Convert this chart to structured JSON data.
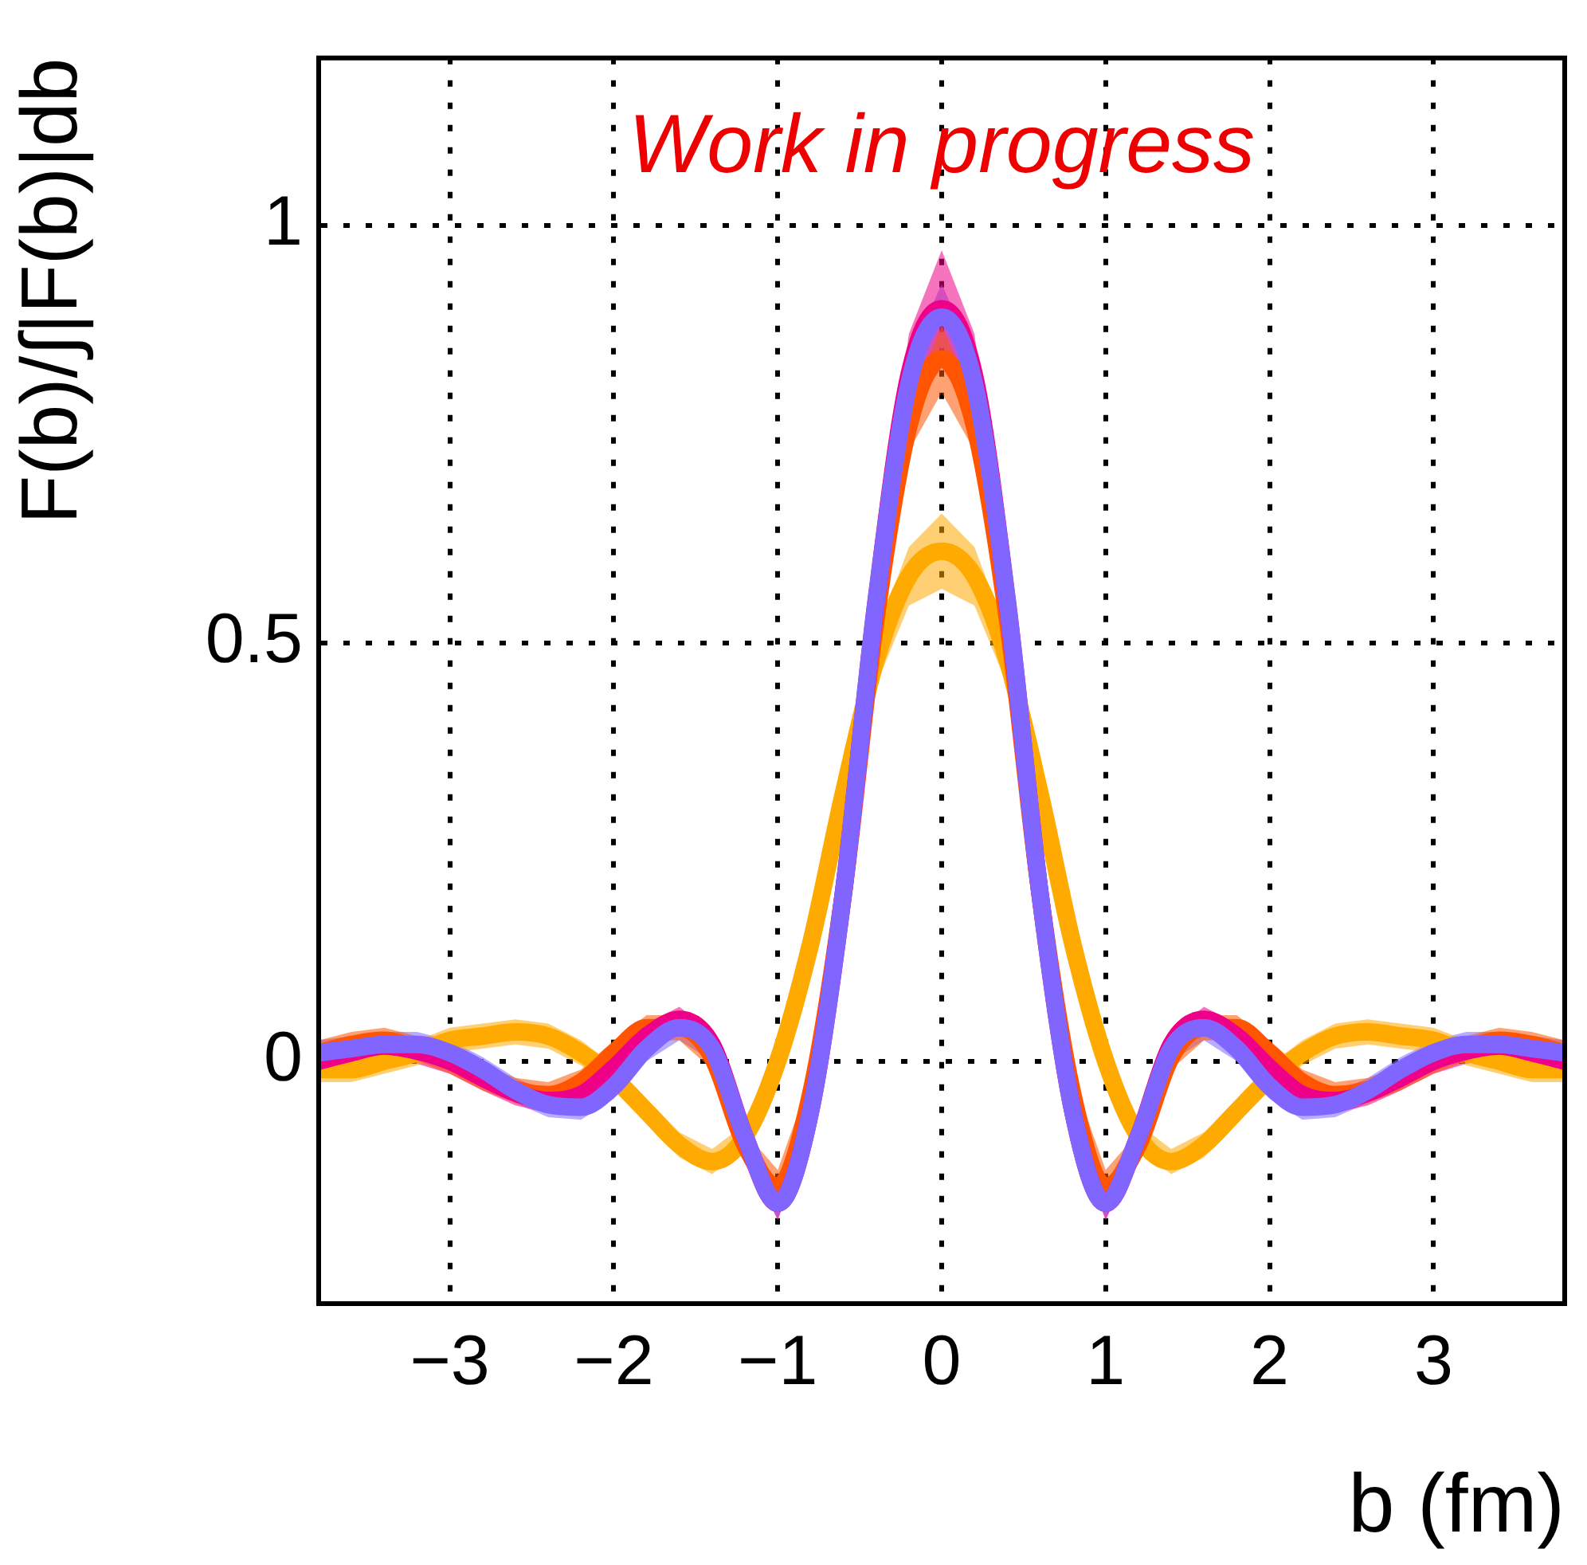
{
  "chart_data": {
    "type": "line",
    "xlabel": "b (fm)",
    "ylabel": "F(b)/∫|F(b)|db",
    "annotations": [
      "Work in progress"
    ],
    "x": [
      -3.8,
      -3.6,
      -3.4,
      -3.2,
      -3.0,
      -2.8,
      -2.6,
      -2.4,
      -2.2,
      -2.0,
      -1.8,
      -1.6,
      -1.4,
      -1.2,
      -1.0,
      -0.8,
      -0.6,
      -0.4,
      -0.2,
      0,
      0.2,
      0.4,
      0.6,
      0.8,
      1.0,
      1.2,
      1.4,
      1.6,
      1.8,
      2.0,
      2.2,
      2.4,
      2.6,
      2.8,
      3.0,
      3.2,
      3.4,
      3.6,
      3.8
    ],
    "xlim": [
      -3.8,
      3.8
    ],
    "xticks": [
      -3,
      -2,
      -1,
      0,
      1,
      2,
      3
    ],
    "ylim": [
      -0.29,
      1.2
    ],
    "yticks": [
      0,
      0.5,
      1
    ],
    "grid": true,
    "line_style": "solid",
    "marker": "none",
    "series": [
      {
        "color": "#8066ff",
        "values": [
          0.01,
          0.015,
          0.02,
          0.02,
          0.01,
          -0.01,
          -0.035,
          -0.052,
          -0.055,
          -0.03,
          0.015,
          0.04,
          0.015,
          -0.09,
          -0.17,
          -0.06,
          0.2,
          0.55,
          0.81,
          0.89,
          0.81,
          0.55,
          0.2,
          -0.06,
          -0.17,
          -0.09,
          0.015,
          0.04,
          0.015,
          -0.03,
          -0.055,
          -0.052,
          -0.035,
          -0.01,
          0.01,
          0.02,
          0.02,
          0.015,
          0.01
        ],
        "lower": [
          -0.005,
          0,
          0.005,
          0.005,
          -0.005,
          -0.025,
          -0.05,
          -0.067,
          -0.07,
          -0.045,
          0,
          0.025,
          0,
          -0.105,
          -0.19,
          -0.08,
          0.175,
          0.52,
          0.78,
          0.85,
          0.78,
          0.52,
          0.175,
          -0.08,
          -0.19,
          -0.105,
          0,
          0.025,
          0,
          -0.045,
          -0.07,
          -0.067,
          -0.05,
          -0.025,
          -0.005,
          0.005,
          0.005,
          0,
          -0.005
        ],
        "upper": [
          0.025,
          0.03,
          0.035,
          0.035,
          0.025,
          0.005,
          -0.02,
          -0.037,
          -0.04,
          -0.015,
          0.03,
          0.055,
          0.03,
          -0.075,
          -0.15,
          -0.04,
          0.225,
          0.58,
          0.84,
          0.93,
          0.84,
          0.58,
          0.225,
          -0.04,
          -0.15,
          -0.075,
          0.03,
          0.055,
          0.03,
          -0.015,
          -0.04,
          -0.037,
          -0.02,
          0.005,
          0.025,
          0.035,
          0.035,
          0.03,
          0.025
        ]
      },
      {
        "color": "#ee0088",
        "values": [
          0,
          0.01,
          0.018,
          0.012,
          0,
          -0.02,
          -0.038,
          -0.047,
          -0.04,
          -0.008,
          0.03,
          0.05,
          0.02,
          -0.09,
          -0.17,
          -0.06,
          0.2,
          0.55,
          0.82,
          0.9,
          0.82,
          0.55,
          0.2,
          -0.06,
          -0.17,
          -0.09,
          0.02,
          0.05,
          0.03,
          -0.008,
          -0.04,
          -0.047,
          -0.038,
          -0.02,
          0,
          0.012,
          0.018,
          0.01,
          0
        ],
        "lower": [
          -0.015,
          -0.005,
          0.003,
          -0.003,
          -0.015,
          -0.035,
          -0.053,
          -0.062,
          -0.055,
          -0.023,
          0.015,
          0.035,
          0.005,
          -0.105,
          -0.19,
          -0.08,
          0.175,
          0.52,
          0.77,
          0.83,
          0.77,
          0.52,
          0.175,
          -0.08,
          -0.19,
          -0.105,
          0.005,
          0.035,
          0.015,
          -0.023,
          -0.055,
          -0.062,
          -0.053,
          -0.035,
          -0.015,
          -0.003,
          0.003,
          -0.005,
          -0.015
        ],
        "upper": [
          0.015,
          0.025,
          0.033,
          0.027,
          0.015,
          -0.005,
          -0.023,
          -0.032,
          -0.025,
          0.007,
          0.045,
          0.065,
          0.035,
          -0.075,
          -0.15,
          -0.04,
          0.225,
          0.58,
          0.87,
          0.97,
          0.87,
          0.58,
          0.225,
          -0.04,
          -0.15,
          -0.075,
          0.035,
          0.065,
          0.045,
          0.007,
          -0.025,
          -0.032,
          -0.023,
          -0.005,
          0.015,
          0.027,
          0.033,
          0.025,
          0.015
        ]
      },
      {
        "color": "#ff5500",
        "values": [
          0.01,
          0.02,
          0.025,
          0.015,
          0,
          -0.02,
          -0.035,
          -0.04,
          -0.025,
          0.01,
          0.04,
          0.04,
          0.005,
          -0.1,
          -0.15,
          -0.04,
          0.2,
          0.53,
          0.76,
          0.84,
          0.76,
          0.53,
          0.2,
          -0.04,
          -0.15,
          -0.1,
          0.005,
          0.04,
          0.04,
          0.01,
          -0.025,
          -0.04,
          -0.035,
          -0.02,
          0,
          0.015,
          0.025,
          0.02,
          0.01
        ],
        "lower": [
          -0.005,
          0.005,
          0.01,
          0,
          -0.015,
          -0.035,
          -0.05,
          -0.055,
          -0.04,
          -0.005,
          0.025,
          0.025,
          -0.01,
          -0.115,
          -0.17,
          -0.06,
          0.175,
          0.5,
          0.73,
          0.8,
          0.73,
          0.5,
          0.175,
          -0.06,
          -0.17,
          -0.115,
          -0.01,
          0.025,
          0.025,
          -0.005,
          -0.04,
          -0.055,
          -0.05,
          -0.035,
          -0.015,
          0,
          0.01,
          0.005,
          -0.005
        ],
        "upper": [
          0.025,
          0.035,
          0.04,
          0.03,
          0.015,
          -0.005,
          -0.02,
          -0.025,
          -0.01,
          0.025,
          0.055,
          0.055,
          0.02,
          -0.085,
          -0.13,
          -0.02,
          0.225,
          0.56,
          0.79,
          0.88,
          0.79,
          0.56,
          0.225,
          -0.02,
          -0.13,
          -0.085,
          0.02,
          0.055,
          0.055,
          0.025,
          -0.01,
          -0.025,
          -0.02,
          -0.005,
          0.015,
          0.03,
          0.04,
          0.035,
          0.025
        ]
      },
      {
        "color": "#ffaa00",
        "values": [
          -0.01,
          -0.01,
          0,
          0.01,
          0.025,
          0.03,
          0.035,
          0.03,
          0.01,
          -0.02,
          -0.06,
          -0.1,
          -0.12,
          -0.09,
          0,
          0.14,
          0.32,
          0.48,
          0.58,
          0.61,
          0.58,
          0.48,
          0.32,
          0.14,
          0,
          -0.09,
          -0.12,
          -0.1,
          -0.06,
          -0.02,
          0.01,
          0.03,
          0.035,
          0.03,
          0.025,
          0.01,
          0,
          -0.01,
          -0.01
        ],
        "lower": [
          -0.025,
          -0.025,
          -0.015,
          -0.005,
          0.01,
          0.015,
          0.02,
          0.015,
          -0.005,
          -0.035,
          -0.075,
          -0.115,
          -0.135,
          -0.105,
          -0.02,
          0.12,
          0.295,
          0.45,
          0.545,
          0.565,
          0.545,
          0.45,
          0.295,
          0.12,
          -0.02,
          -0.105,
          -0.135,
          -0.115,
          -0.075,
          -0.035,
          -0.005,
          0.015,
          0.02,
          0.015,
          0.01,
          -0.005,
          -0.015,
          -0.025,
          -0.025
        ],
        "upper": [
          0.005,
          0.005,
          0.015,
          0.025,
          0.04,
          0.045,
          0.05,
          0.045,
          0.025,
          -0.005,
          -0.045,
          -0.085,
          -0.105,
          -0.075,
          0.02,
          0.16,
          0.345,
          0.51,
          0.615,
          0.655,
          0.615,
          0.51,
          0.345,
          0.16,
          0.02,
          -0.075,
          -0.105,
          -0.085,
          -0.045,
          -0.005,
          0.025,
          0.045,
          0.05,
          0.045,
          0.04,
          0.025,
          0.015,
          0.005,
          0.005
        ]
      }
    ]
  }
}
